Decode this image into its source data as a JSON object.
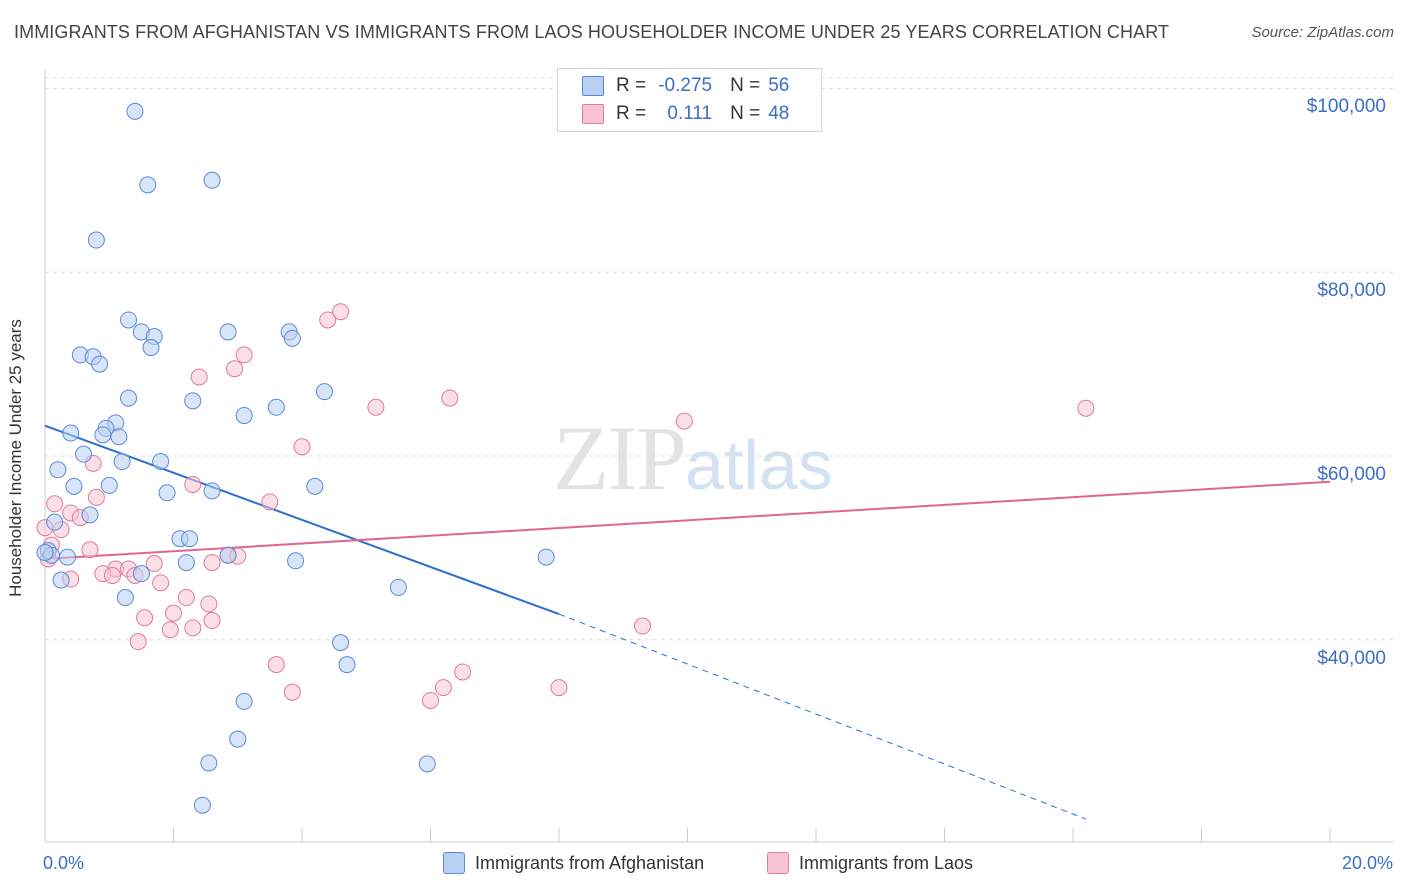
{
  "title": "IMMIGRANTS FROM AFGHANISTAN VS IMMIGRANTS FROM LAOS HOUSEHOLDER INCOME UNDER 25 YEARS CORRELATION CHART",
  "source": "Source: ZipAtlas.com",
  "watermark": {
    "zip": "ZIP",
    "atlas": "atlas"
  },
  "legend": {
    "rows": [
      {
        "r_label": "R =",
        "r_value": "-0.275",
        "n_label": "N =",
        "n_value": "56"
      },
      {
        "r_label": "R =",
        "r_value": "0.111",
        "n_label": "N =",
        "n_value": "48"
      }
    ]
  },
  "bottom_legend": {
    "afghanistan": "Immigrants from Afghanistan",
    "laos": "Immigrants from Laos"
  },
  "colors": {
    "afghanistan_fill": "#b8d0f2",
    "afghanistan_stroke": "#5a8ad6",
    "afghanistan_line": "#2d6fce",
    "laos_fill": "#f8c4d4",
    "laos_stroke": "#e07a9c",
    "laos_line": "#e06690",
    "grid": "#dddddd",
    "tick_text": "#3a6fc4"
  },
  "chart_data": {
    "type": "scatter",
    "title": "IMMIGRANTS FROM AFGHANISTAN VS IMMIGRANTS FROM LAOS HOUSEHOLDER INCOME UNDER 25 YEARS CORRELATION CHART",
    "xlabel": "",
    "ylabel": "Householder Income Under 25 years",
    "x_tick_labels": [
      "0.0%",
      "20.0%"
    ],
    "y_tick_labels": [
      "$40,000",
      "$60,000",
      "$80,000",
      "$100,000"
    ],
    "y_ticks": [
      40000,
      60000,
      80000,
      100000
    ],
    "xlim": [
      0,
      20
    ],
    "ylim": [
      18000,
      102000
    ],
    "grid": true,
    "series": [
      {
        "name": "Immigrants from Afghanistan",
        "R": -0.275,
        "N": 56,
        "points": [
          [
            1.4,
            97500
          ],
          [
            1.6,
            89500
          ],
          [
            2.6,
            90000
          ],
          [
            0.8,
            83500
          ],
          [
            1.3,
            74800
          ],
          [
            1.5,
            73500
          ],
          [
            1.7,
            73000
          ],
          [
            1.65,
            71800
          ],
          [
            2.85,
            73500
          ],
          [
            3.8,
            73500
          ],
          [
            3.85,
            72800
          ],
          [
            0.55,
            71000
          ],
          [
            0.75,
            70800
          ],
          [
            0.85,
            70000
          ],
          [
            4.35,
            67000
          ],
          [
            1.3,
            66300
          ],
          [
            2.3,
            66000
          ],
          [
            3.6,
            65300
          ],
          [
            3.1,
            64400
          ],
          [
            1.1,
            63600
          ],
          [
            0.4,
            62500
          ],
          [
            0.95,
            63000
          ],
          [
            0.9,
            62300
          ],
          [
            1.15,
            62100
          ],
          [
            0.6,
            60200
          ],
          [
            1.2,
            59400
          ],
          [
            1.8,
            59400
          ],
          [
            0.2,
            58500
          ],
          [
            0.45,
            56700
          ],
          [
            1.0,
            56800
          ],
          [
            1.9,
            56000
          ],
          [
            2.6,
            56200
          ],
          [
            4.2,
            56700
          ],
          [
            0.7,
            53600
          ],
          [
            0.15,
            52800
          ],
          [
            2.1,
            51000
          ],
          [
            2.25,
            51000
          ],
          [
            0.05,
            49700
          ],
          [
            0.1,
            49200
          ],
          [
            0.35,
            49000
          ],
          [
            2.85,
            49200
          ],
          [
            3.9,
            48600
          ],
          [
            2.2,
            48400
          ],
          [
            7.8,
            49000
          ],
          [
            0.25,
            46500
          ],
          [
            1.5,
            47200
          ],
          [
            5.5,
            45700
          ],
          [
            1.25,
            44600
          ],
          [
            4.6,
            39700
          ],
          [
            4.7,
            37300
          ],
          [
            3.1,
            33300
          ],
          [
            3.0,
            29200
          ],
          [
            2.55,
            26600
          ],
          [
            5.95,
            26500
          ],
          [
            2.45,
            22000
          ],
          [
            0.0,
            49500
          ]
        ],
        "trend": {
          "x0": 0.0,
          "y0": 63300,
          "x1": 8.0,
          "y1": 42800,
          "dash_to_x": 16.2,
          "dash_to_y": 20500
        }
      },
      {
        "name": "Immigrants from Laos",
        "R": 0.111,
        "N": 48,
        "points": [
          [
            4.6,
            75700
          ],
          [
            4.4,
            74800
          ],
          [
            3.1,
            71000
          ],
          [
            2.95,
            69500
          ],
          [
            2.4,
            68600
          ],
          [
            6.3,
            66300
          ],
          [
            5.15,
            65300
          ],
          [
            16.2,
            65200
          ],
          [
            9.95,
            63800
          ],
          [
            4.0,
            61000
          ],
          [
            0.75,
            59200
          ],
          [
            2.3,
            56900
          ],
          [
            0.8,
            55500
          ],
          [
            3.5,
            55000
          ],
          [
            0.15,
            54800
          ],
          [
            0.4,
            53800
          ],
          [
            0.55,
            53300
          ],
          [
            0.0,
            52200
          ],
          [
            0.1,
            50300
          ],
          [
            0.25,
            52000
          ],
          [
            0.7,
            49800
          ],
          [
            0.05,
            48800
          ],
          [
            2.85,
            49200
          ],
          [
            3.0,
            49100
          ],
          [
            2.6,
            48400
          ],
          [
            1.7,
            48300
          ],
          [
            1.1,
            47700
          ],
          [
            1.3,
            47700
          ],
          [
            0.9,
            47200
          ],
          [
            1.05,
            47000
          ],
          [
            1.4,
            47000
          ],
          [
            0.4,
            46600
          ],
          [
            1.8,
            46200
          ],
          [
            2.2,
            44600
          ],
          [
            2.55,
            43900
          ],
          [
            2.0,
            42900
          ],
          [
            1.55,
            42400
          ],
          [
            2.6,
            42100
          ],
          [
            2.3,
            41300
          ],
          [
            1.95,
            41100
          ],
          [
            1.45,
            39800
          ],
          [
            9.3,
            41500
          ],
          [
            3.6,
            37300
          ],
          [
            6.5,
            36500
          ],
          [
            3.85,
            34300
          ],
          [
            6.2,
            34800
          ],
          [
            8.0,
            34800
          ],
          [
            6.0,
            33400
          ]
        ],
        "trend": {
          "x0": 0.0,
          "y0": 48800,
          "x1": 20.0,
          "y1": 57200
        }
      }
    ]
  }
}
